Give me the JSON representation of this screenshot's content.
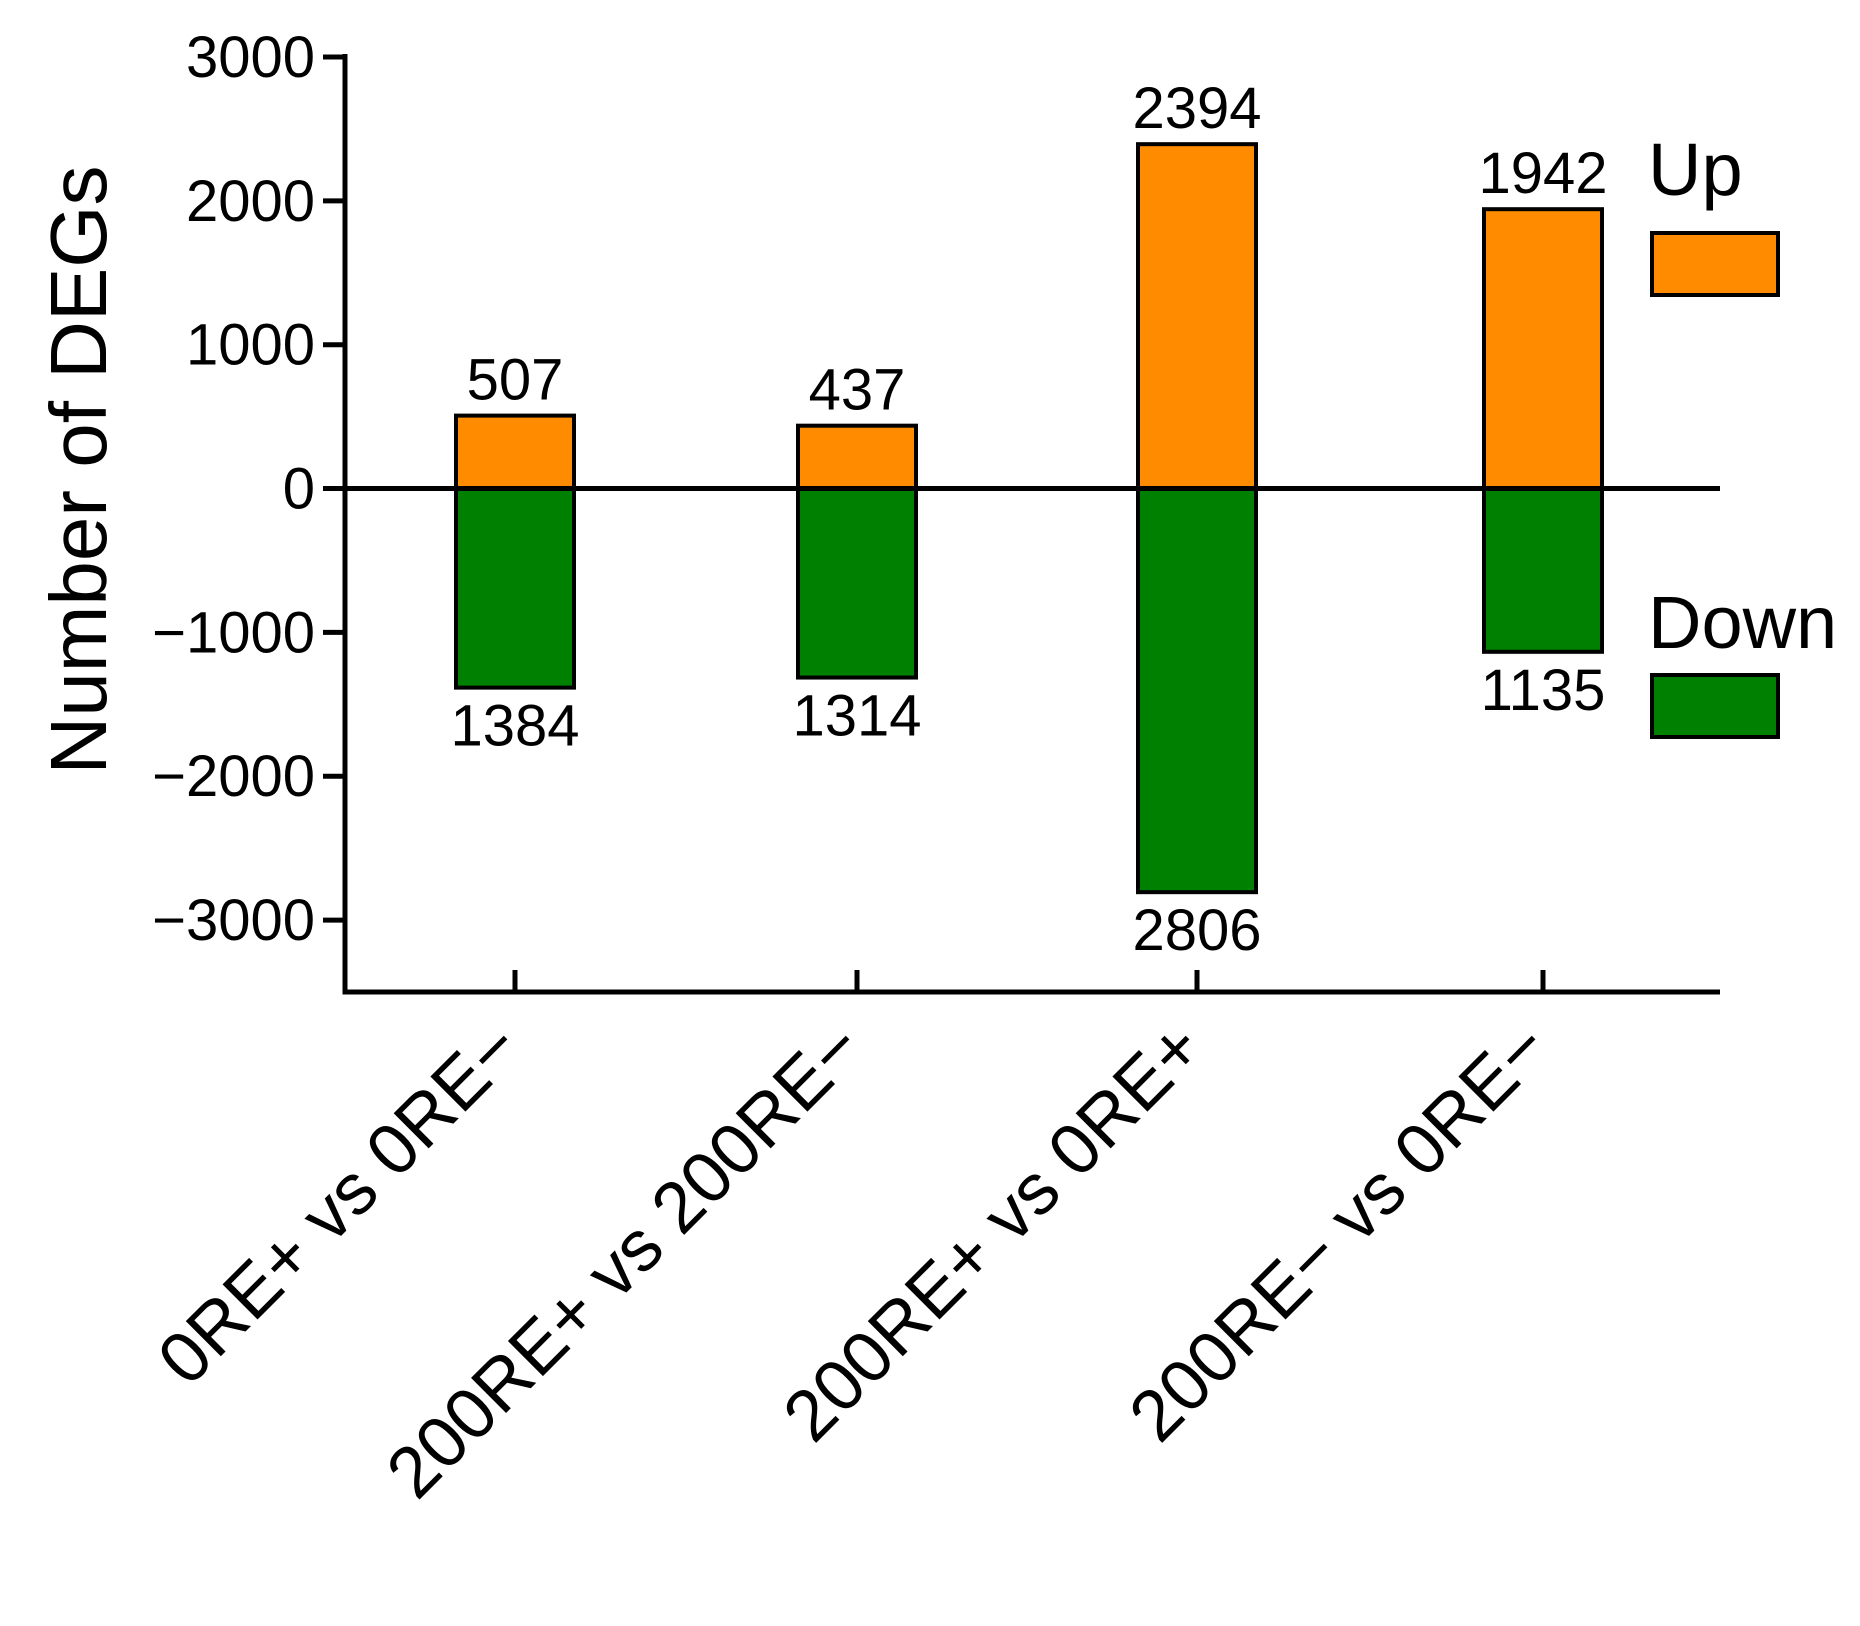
{
  "chart_data": {
    "type": "bar",
    "title": "",
    "xlabel": "",
    "ylabel": "Number of DEGs",
    "ylim": [
      -3500,
      3000
    ],
    "yticks": [
      3000,
      2000,
      1000,
      0,
      -1000,
      -2000,
      -3000
    ],
    "ytick_labels": [
      "3000",
      "2000",
      "1000",
      "0",
      "−1000",
      "−2000",
      "−3000"
    ],
    "categories": [
      "0RE+ vs 0RE−",
      "200RE+ vs 200RE−",
      "200RE+ vs 0RE+",
      "200RE− vs 0RE−"
    ],
    "series": [
      {
        "name": "Up",
        "values": [
          507,
          437,
          2394,
          1942
        ],
        "labels": [
          "507",
          "437",
          "2394",
          "1942"
        ],
        "color": "#ff8c00"
      },
      {
        "name": "Down",
        "values": [
          -1384,
          -1314,
          -2806,
          -1135
        ],
        "labels": [
          "1384",
          "1314",
          "2806",
          "1135"
        ],
        "color": "#008000"
      }
    ],
    "legend": {
      "placement": "right",
      "entries": [
        "Up",
        "Down"
      ]
    },
    "grid": false
  }
}
